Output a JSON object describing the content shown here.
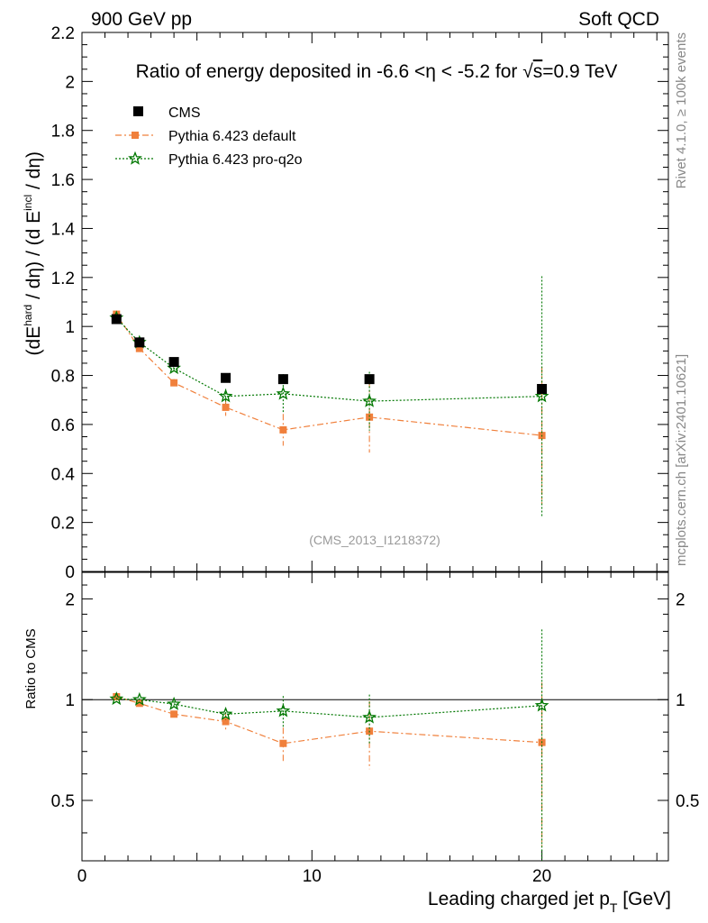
{
  "header": {
    "left": "900 GeV pp",
    "right": "Soft QCD"
  },
  "side_labels": {
    "rivet": "Rivet 4.1.0, ≥ 100k events",
    "mcplots": "mcplots.cern.ch [arXiv:2401.10621]"
  },
  "chart_data": {
    "type": "scatter",
    "title_parts": {
      "before_eta": "Ratio of energy deposited in -6.6 <",
      "eta": "η",
      "middle": " < -5.2 for ",
      "sqrt": "√",
      "s": "s",
      "after": "=0.9 TeV"
    },
    "analysis_label": "(CMS_2013_I1218372)",
    "xlabel": {
      "text": "Leading charged jet p",
      "sub": "T",
      "unit": " [GeV]"
    },
    "ylabel": {
      "p1": "(dE",
      "sup1": "hard",
      "p2": " / dη) / (d E",
      "sup2": "incl",
      "p3": " / dη)"
    },
    "ratio_ylabel": "Ratio to CMS",
    "xlim": [
      0,
      25.5
    ],
    "ylim": [
      0,
      2.2
    ],
    "ratio_ylim": [
      0.33,
      2.4
    ],
    "x_ticks": [
      "0",
      "10",
      "20"
    ],
    "y_ticks": [
      "0",
      "0.2",
      "0.4",
      "0.6",
      "0.8",
      "1",
      "1.2",
      "1.4",
      "1.6",
      "1.8",
      "2",
      "2.2"
    ],
    "ratio_y_ticks": [
      "0.5",
      "1",
      "2"
    ],
    "legend_position": "top-left",
    "series": [
      {
        "name": "CMS",
        "color": "#000000",
        "marker": "square",
        "line": "none",
        "x": [
          1.5,
          2.5,
          4.0,
          6.25,
          8.75,
          12.5,
          20.0
        ],
        "y": [
          1.03,
          0.935,
          0.855,
          0.79,
          0.785,
          0.785,
          0.745
        ],
        "yerr": [
          0.01,
          0.01,
          0.01,
          0.01,
          0.01,
          0.01,
          0.01
        ]
      },
      {
        "name": "Pythia 6.423 default",
        "color": "#f0803c",
        "marker": "square-small",
        "line": "dashdot",
        "x": [
          1.5,
          2.5,
          4.0,
          6.25,
          8.75,
          12.5,
          20.0
        ],
        "y": [
          1.05,
          0.91,
          0.77,
          0.67,
          0.578,
          0.63,
          0.555
        ],
        "yerr": [
          0.015,
          0.015,
          0.015,
          0.035,
          0.065,
          0.145,
          0.28
        ],
        "ratio": [
          1.02,
          0.975,
          0.905,
          0.86,
          0.74,
          0.805,
          0.745
        ],
        "ratio_err": [
          0.015,
          0.015,
          0.02,
          0.045,
          0.085,
          0.185,
          0.38
        ]
      },
      {
        "name": "Pythia 6.423 pro-q2o",
        "color": "#007700",
        "marker": "star",
        "line": "dotted",
        "x": [
          1.5,
          2.5,
          4.0,
          6.25,
          8.75,
          12.5,
          20.0
        ],
        "y": [
          1.035,
          0.935,
          0.83,
          0.715,
          0.725,
          0.695,
          0.715
        ],
        "yerr": [
          0.01,
          0.01,
          0.015,
          0.03,
          0.08,
          0.12,
          0.49
        ],
        "ratio": [
          1.005,
          1.0,
          0.97,
          0.905,
          0.925,
          0.885,
          0.96
        ],
        "ratio_err": [
          0.01,
          0.01,
          0.018,
          0.035,
          0.1,
          0.15,
          0.66
        ]
      }
    ]
  }
}
